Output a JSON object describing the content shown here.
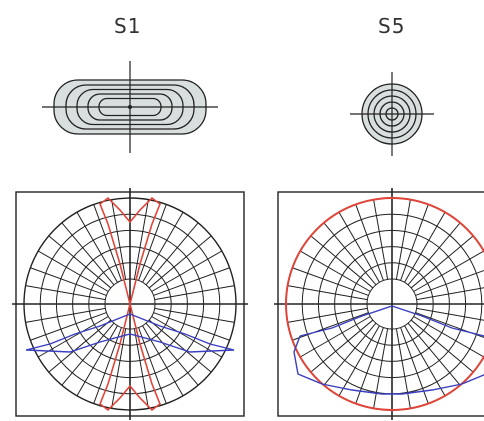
{
  "panels": [
    {
      "label": "S1",
      "spot_shape": "rounded-rectangle",
      "curve_colors": {
        "outer": "#e0453a",
        "inner": "#3a3fc0"
      }
    },
    {
      "label": "S5",
      "spot_shape": "circle",
      "curve_colors": {
        "outer": "#e0453a",
        "inner": "#3a3fc0"
      }
    }
  ],
  "colors": {
    "grid": "#222222",
    "spot_fill": "#d9dfdf",
    "spot_stroke": "#222222",
    "box": "#222222"
  }
}
